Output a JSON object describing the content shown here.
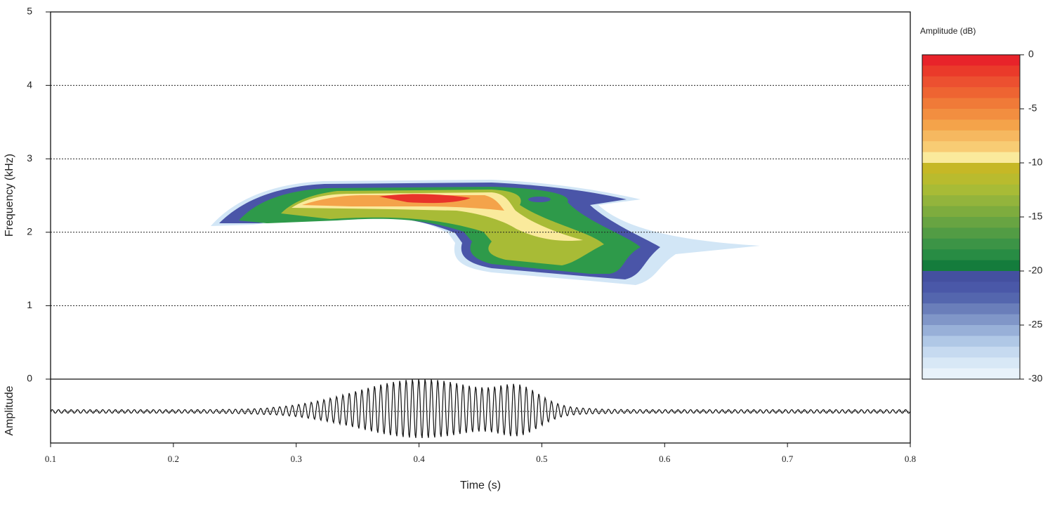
{
  "chart_data": {
    "type": "spectrogram",
    "x_label": "Time (s)",
    "y_label": "Frequency (kHz)",
    "oscillogram_label": "Amplitude",
    "xlim": [
      0.1,
      0.8
    ],
    "xticks": [
      0.1,
      0.2,
      0.3,
      0.4,
      0.5,
      0.6,
      0.7,
      0.8
    ],
    "ylim": [
      0,
      5
    ],
    "yticks": [
      0,
      1,
      2,
      3,
      4,
      5
    ],
    "grid": true,
    "colorbar": {
      "title": "Amplitude (dB)",
      "clim": [
        -30,
        0
      ],
      "ticks": [
        0,
        -5,
        -10,
        -15,
        -20,
        -25,
        -30
      ],
      "colors": [
        "#e8232a",
        "#ea3a2a",
        "#ec5030",
        "#ee6432",
        "#f07a38",
        "#f28e40",
        "#f4a34a",
        "#f6b860",
        "#f8cc74",
        "#faea9c",
        "#c6b826",
        "#b9bb2e",
        "#a8bb36",
        "#93b43c",
        "#7eac3e",
        "#68a442",
        "#529c44",
        "#3c9446",
        "#288c44",
        "#147c3c",
        "#4450a0",
        "#4a58a8",
        "#5466ae",
        "#6a7eba",
        "#8096c8",
        "#98b0d8",
        "#b0c8e6",
        "#c6daf0",
        "#d8e8f6",
        "#e8f2fa"
      ]
    }
  }
}
